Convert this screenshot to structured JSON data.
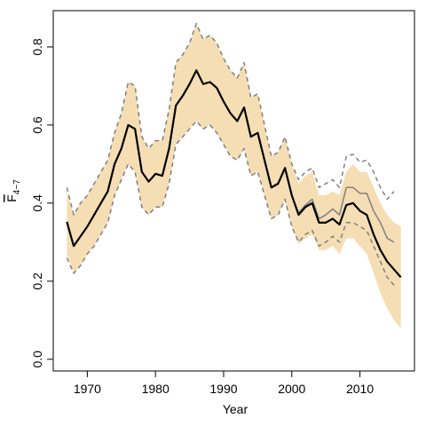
{
  "chart_data": {
    "type": "line",
    "xlabel": "Year",
    "ylabel_symbol": "F",
    "ylabel_subscript": "4−7",
    "x": [
      1967,
      1968,
      1969,
      1970,
      1971,
      1972,
      1973,
      1974,
      1975,
      1976,
      1977,
      1978,
      1979,
      1980,
      1981,
      1982,
      1983,
      1984,
      1985,
      1986,
      1987,
      1988,
      1989,
      1990,
      1991,
      1992,
      1993,
      1994,
      1995,
      1996,
      1997,
      1998,
      1999,
      2000,
      2001,
      2002,
      2003,
      2004,
      2005,
      2006,
      2007,
      2008,
      2009,
      2010,
      2011,
      2012,
      2013,
      2014,
      2015,
      2016
    ],
    "band": {
      "color": "#f5deb3",
      "upper": [
        0.43,
        0.37,
        0.4,
        0.42,
        0.45,
        0.48,
        0.51,
        0.58,
        0.63,
        0.71,
        0.7,
        0.57,
        0.54,
        0.56,
        0.56,
        0.64,
        0.76,
        0.78,
        0.81,
        0.86,
        0.82,
        0.83,
        0.81,
        0.77,
        0.74,
        0.72,
        0.76,
        0.67,
        0.68,
        0.6,
        0.52,
        0.53,
        0.57,
        0.5,
        0.45,
        0.47,
        0.48,
        0.42,
        0.42,
        0.43,
        0.42,
        0.48,
        0.5,
        0.48,
        0.48,
        0.44,
        0.4,
        0.37,
        0.35,
        0.34
      ],
      "lower": [
        0.27,
        0.22,
        0.24,
        0.27,
        0.29,
        0.32,
        0.35,
        0.42,
        0.46,
        0.5,
        0.48,
        0.39,
        0.37,
        0.39,
        0.39,
        0.45,
        0.55,
        0.57,
        0.59,
        0.61,
        0.59,
        0.6,
        0.58,
        0.55,
        0.52,
        0.51,
        0.54,
        0.47,
        0.48,
        0.42,
        0.36,
        0.37,
        0.41,
        0.34,
        0.295,
        0.31,
        0.32,
        0.28,
        0.28,
        0.29,
        0.27,
        0.31,
        0.31,
        0.29,
        0.27,
        0.22,
        0.17,
        0.13,
        0.1,
        0.08
      ]
    },
    "series": [
      {
        "color": "#808080",
        "dash": true,
        "width": 1.5,
        "values": [
          0.44,
          0.37,
          0.4,
          0.42,
          0.45,
          0.48,
          0.51,
          0.58,
          0.63,
          0.71,
          0.7,
          0.57,
          0.54,
          0.56,
          0.56,
          0.64,
          0.76,
          0.78,
          0.81,
          0.86,
          0.82,
          0.83,
          0.81,
          0.77,
          0.74,
          0.72,
          0.76,
          0.67,
          0.68,
          0.6,
          0.52,
          0.53,
          0.57,
          0.5,
          0.46,
          0.48,
          0.49,
          0.44,
          0.45,
          0.46,
          0.44,
          0.52,
          0.525,
          0.505,
          0.51,
          0.48,
          0.44,
          0.41,
          0.43,
          null
        ]
      },
      {
        "color": "#808080",
        "dash": true,
        "width": 1.5,
        "values": [
          0.26,
          0.22,
          0.24,
          0.27,
          0.29,
          0.32,
          0.35,
          0.42,
          0.46,
          0.5,
          0.48,
          0.39,
          0.37,
          0.39,
          0.39,
          0.45,
          0.55,
          0.57,
          0.59,
          0.61,
          0.59,
          0.6,
          0.58,
          0.55,
          0.52,
          0.51,
          0.54,
          0.47,
          0.48,
          0.42,
          0.36,
          0.37,
          0.41,
          0.34,
          0.3,
          0.32,
          0.33,
          0.29,
          0.3,
          0.315,
          0.3,
          0.35,
          0.35,
          0.34,
          0.33,
          0.29,
          0.25,
          0.21,
          0.19,
          null
        ]
      },
      {
        "color": "#808080",
        "dash": false,
        "width": 1.5,
        "values": [
          0.352,
          0.29,
          0.315,
          0.34,
          0.37,
          0.4,
          0.43,
          0.5,
          0.54,
          0.6,
          0.59,
          0.48,
          0.455,
          0.475,
          0.47,
          0.54,
          0.65,
          0.675,
          0.705,
          0.74,
          0.705,
          0.71,
          0.695,
          0.66,
          0.63,
          0.61,
          0.645,
          0.57,
          0.58,
          0.51,
          0.44,
          0.45,
          0.49,
          0.42,
          0.375,
          0.395,
          0.41,
          0.36,
          0.37,
          0.385,
          0.37,
          0.44,
          0.44,
          0.425,
          0.425,
          0.38,
          0.35,
          0.31,
          0.3,
          null
        ]
      },
      {
        "color": "#000000",
        "dash": false,
        "width": 2.2,
        "values": [
          0.352,
          0.29,
          0.315,
          0.34,
          0.37,
          0.4,
          0.43,
          0.5,
          0.54,
          0.6,
          0.59,
          0.48,
          0.455,
          0.475,
          0.47,
          0.54,
          0.65,
          0.675,
          0.705,
          0.74,
          0.705,
          0.71,
          0.695,
          0.66,
          0.63,
          0.61,
          0.645,
          0.57,
          0.58,
          0.51,
          0.44,
          0.45,
          0.49,
          0.42,
          0.37,
          0.39,
          0.4,
          0.35,
          0.35,
          0.36,
          0.345,
          0.395,
          0.4,
          0.38,
          0.37,
          0.32,
          0.28,
          0.25,
          0.23,
          0.21
        ]
      }
    ],
    "xlim": [
      1965,
      2018
    ],
    "ylim": [
      -0.03,
      0.893
    ],
    "xticks": [
      1970,
      1980,
      1990,
      2000,
      2010
    ],
    "yticks": [
      {
        "value": 0,
        "label": "0.0"
      },
      0.2,
      0.4,
      0.6,
      {
        "value": 0.8,
        "label": "0.8"
      }
    ]
  }
}
